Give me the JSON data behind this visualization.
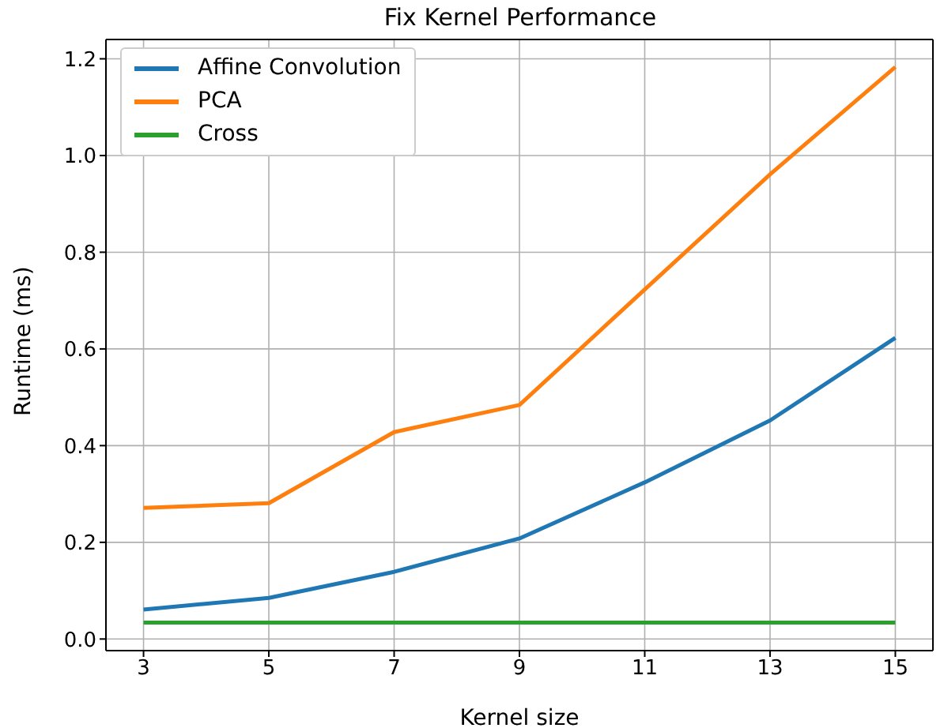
{
  "chart_data": {
    "type": "line",
    "title": "Fix Kernel Performance",
    "xlabel": "Kernel size",
    "ylabel": "Runtime (ms)",
    "x": [
      3,
      5,
      7,
      9,
      11,
      13,
      15
    ],
    "series": [
      {
        "name": "Affine Convolution",
        "color": "#1f77b4",
        "values": [
          0.061,
          0.085,
          0.139,
          0.208,
          0.324,
          0.452,
          0.623
        ]
      },
      {
        "name": "PCA",
        "color": "#ff7f0e",
        "values": [
          0.271,
          0.281,
          0.428,
          0.484,
          0.723,
          0.961,
          1.183
        ]
      },
      {
        "name": "Cross",
        "color": "#2ca02c",
        "values": [
          0.034,
          0.034,
          0.034,
          0.034,
          0.034,
          0.034,
          0.034
        ]
      }
    ],
    "xlim": [
      2.4,
      15.6
    ],
    "xticks": [
      3,
      5,
      7,
      9,
      11,
      13,
      15
    ],
    "ylim": [
      -0.024,
      1.24
    ],
    "yticks": [
      {
        "value": 0,
        "label": "0.0"
      },
      0.2,
      0.4,
      0.6,
      0.8,
      {
        "value": 1,
        "label": "1.0"
      },
      1.2
    ],
    "grid": true,
    "legend": "top left",
    "marker": "none",
    "line_style": "solid"
  }
}
